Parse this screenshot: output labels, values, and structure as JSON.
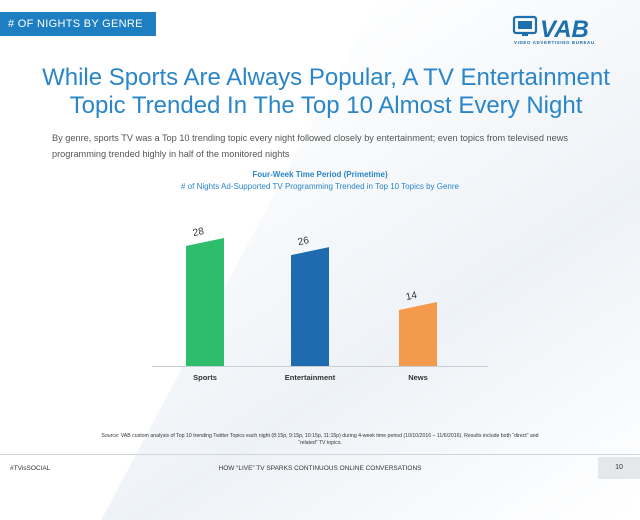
{
  "header": {
    "tag": "# OF NIGHTS BY GENRE",
    "logo_text": "VAB",
    "logo_subtext": "VIDEO ADVERTISING BUREAU"
  },
  "headline": "While Sports Are Always Popular, A TV Entertainment Topic Trended In The Top 10 Almost Every Night",
  "subtitle": "By genre, sports TV was a Top 10 trending topic every night followed closely by entertainment; even topics from televised news programming trended highly in half of the monitored nights",
  "chart_data": {
    "type": "bar",
    "title": "Four-Week Time Period (Primetime)",
    "subtitle": "# of Nights Ad-Supported TV Programming Trended in Top 10 Topics by Genre",
    "categories": [
      "Sports",
      "Entertainment",
      "News"
    ],
    "values": [
      28,
      26,
      14
    ],
    "colors": [
      "#2ebd6b",
      "#1f6bb0",
      "#f39a4c"
    ],
    "ylim": [
      0,
      28
    ],
    "grid": false,
    "legend": "none"
  },
  "source": "Source: VAB custom analysis of Top 10 trending Twitter Topics each night (8:15p, 9:15p, 10:15p, 11:15p) during 4-week time period (10/10/2016 – 11/6/2016). Results include both “direct” and “related” TV topics.",
  "footer": {
    "left": "#TVisSOCIAL",
    "center": "HOW “LIVE” TV SPARKS CONTINUOUS ONLINE CONVERSATIONS",
    "page": "10"
  }
}
